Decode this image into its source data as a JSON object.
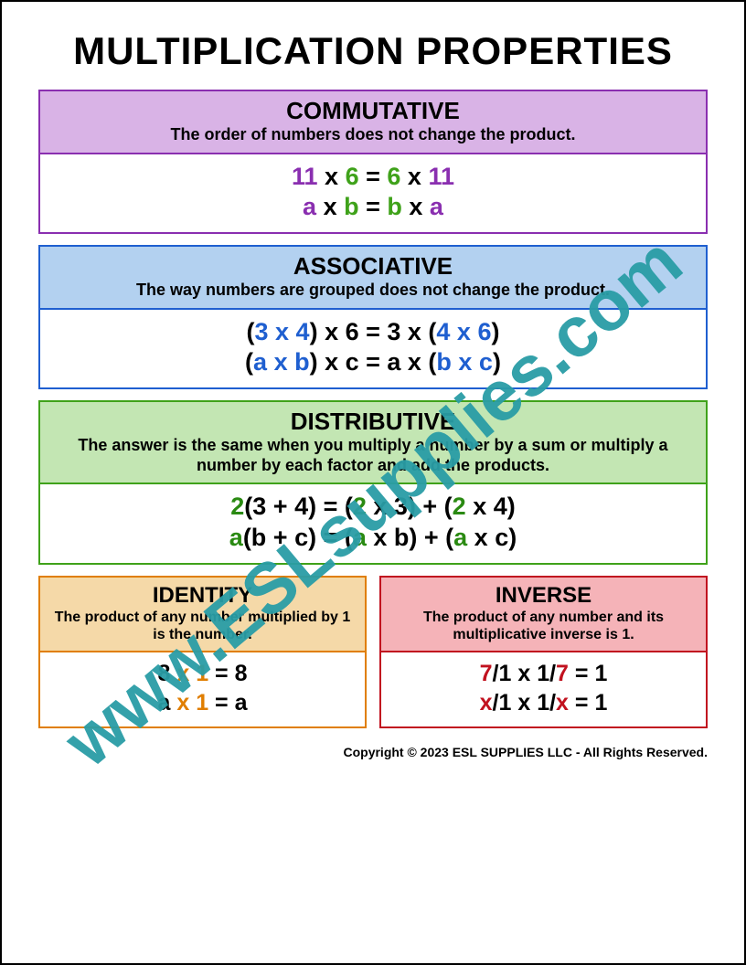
{
  "title": "MULTIPLICATION PROPERTIES",
  "watermark": {
    "text": "www.ESLsupplies.com",
    "color": "#2a9da6"
  },
  "copyright": "Copyright © 2023 ESL SUPPLIES LLC - All Rights Reserved.",
  "colors": {
    "text": "#000000",
    "purple": "#8a2fb0",
    "green": "#3fa21a",
    "blue": "#1f5fd0",
    "orange": "#e07e00",
    "darkgreen": "#2a8a12",
    "red": "#c1121f"
  },
  "properties": {
    "commutative": {
      "name": "COMMUTATIVE",
      "desc": "The order of numbers does not change the product.",
      "header_bg": "#d9b3e6",
      "border": "#8a2fb0",
      "eq1": [
        {
          "t": "11",
          "c": "#8a2fb0"
        },
        {
          "t": " x ",
          "c": "#000000"
        },
        {
          "t": "6",
          "c": "#3fa21a"
        },
        {
          "t": " = ",
          "c": "#000000"
        },
        {
          "t": "6",
          "c": "#3fa21a"
        },
        {
          "t": " x ",
          "c": "#000000"
        },
        {
          "t": "11",
          "c": "#8a2fb0"
        }
      ],
      "eq2": [
        {
          "t": "a",
          "c": "#8a2fb0"
        },
        {
          "t": " x ",
          "c": "#000000"
        },
        {
          "t": "b",
          "c": "#3fa21a"
        },
        {
          "t": " = ",
          "c": "#000000"
        },
        {
          "t": "b",
          "c": "#3fa21a"
        },
        {
          "t": " x ",
          "c": "#000000"
        },
        {
          "t": "a",
          "c": "#8a2fb0"
        }
      ]
    },
    "associative": {
      "name": "ASSOCIATIVE",
      "desc": "The way numbers are grouped does not change the product.",
      "header_bg": "#b3d1f0",
      "border": "#1f5fd0",
      "eq1": [
        {
          "t": "(",
          "c": "#000000"
        },
        {
          "t": "3 x 4",
          "c": "#1f5fd0"
        },
        {
          "t": ") x 6 = 3 x (",
          "c": "#000000"
        },
        {
          "t": "4 x 6",
          "c": "#1f5fd0"
        },
        {
          "t": ")",
          "c": "#000000"
        }
      ],
      "eq2": [
        {
          "t": "(",
          "c": "#000000"
        },
        {
          "t": "a x b",
          "c": "#1f5fd0"
        },
        {
          "t": ") x c = a x (",
          "c": "#000000"
        },
        {
          "t": "b x c",
          "c": "#1f5fd0"
        },
        {
          "t": ")",
          "c": "#000000"
        }
      ]
    },
    "distributive": {
      "name": "DISTRIBUTIVE",
      "desc": "The answer is the same when you multiply a number by a sum or multiply a number by each factor and add the products.",
      "header_bg": "#c3e6b3",
      "border": "#3fa21a",
      "eq1": [
        {
          "t": "2",
          "c": "#2a8a12"
        },
        {
          "t": "(3 + 4) = (",
          "c": "#000000"
        },
        {
          "t": "2",
          "c": "#2a8a12"
        },
        {
          "t": " x 3) + (",
          "c": "#000000"
        },
        {
          "t": "2",
          "c": "#2a8a12"
        },
        {
          "t": " x 4)",
          "c": "#000000"
        }
      ],
      "eq2": [
        {
          "t": "a",
          "c": "#2a8a12"
        },
        {
          "t": "(b + c) = (",
          "c": "#000000"
        },
        {
          "t": "a",
          "c": "#2a8a12"
        },
        {
          "t": " x b) + (",
          "c": "#000000"
        },
        {
          "t": "a",
          "c": "#2a8a12"
        },
        {
          "t": " x c)",
          "c": "#000000"
        }
      ]
    },
    "identity": {
      "name": "IDENTITY",
      "desc": "The product of any number multiplied by 1 is the number.",
      "header_bg": "#f5d9a8",
      "border": "#e07e00",
      "eq1": [
        {
          "t": "8 ",
          "c": "#000000"
        },
        {
          "t": "x 1",
          "c": "#e07e00"
        },
        {
          "t": " = 8",
          "c": "#000000"
        }
      ],
      "eq2": [
        {
          "t": "a ",
          "c": "#000000"
        },
        {
          "t": "x 1",
          "c": "#e07e00"
        },
        {
          "t": " = a",
          "c": "#000000"
        }
      ]
    },
    "inverse": {
      "name": "INVERSE",
      "desc": "The product of any number and its multiplicative inverse is 1.",
      "header_bg": "#f5b3b8",
      "border": "#c1121f",
      "eq1": [
        {
          "t": "7",
          "c": "#c1121f"
        },
        {
          "t": "/1 x 1/",
          "c": "#000000"
        },
        {
          "t": "7",
          "c": "#c1121f"
        },
        {
          "t": " = 1",
          "c": "#000000"
        }
      ],
      "eq2": [
        {
          "t": "x",
          "c": "#c1121f"
        },
        {
          "t": "/1 x 1/",
          "c": "#000000"
        },
        {
          "t": "x",
          "c": "#c1121f"
        },
        {
          "t": " = 1",
          "c": "#000000"
        }
      ]
    }
  }
}
